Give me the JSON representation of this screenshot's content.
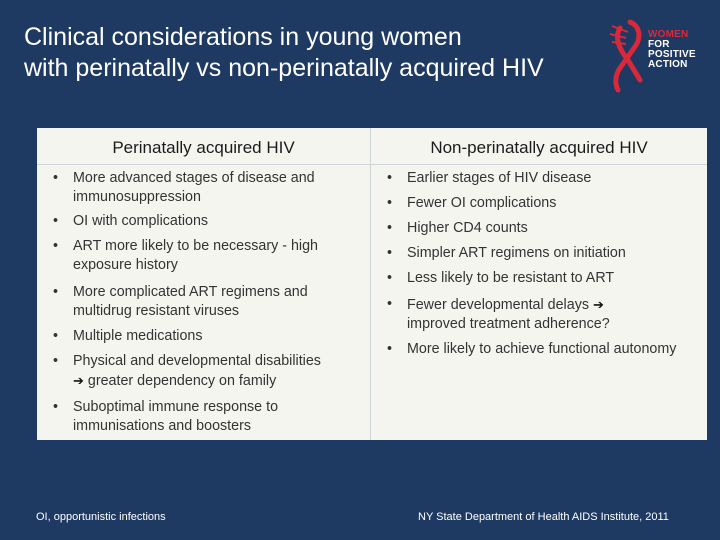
{
  "slide": {
    "title_line1": "Clinical considerations in young women",
    "title_line2": "with perinatally vs non-perinatally acquired HIV",
    "logo": {
      "line1": "WOMEN",
      "line2": "FOR",
      "line3": "POSITIVE",
      "line4": "ACTION",
      "accent_color": "#d9283a"
    },
    "left_column": {
      "heading": "Perinatally acquired HIV",
      "items": [
        "More advanced stages of disease and immunosuppression",
        "OI with complications",
        "ART more likely to be necessary - high exposure history",
        "More complicated ART regimens and multidrug resistant viruses",
        "Multiple medications",
        "Physical and developmental disabilities",
        "greater dependency on family",
        "Suboptimal immune response to immunisations and boosters"
      ]
    },
    "right_column": {
      "heading": "Non-perinatally acquired HIV",
      "items": [
        "Earlier stages of HIV disease",
        "Fewer OI complications",
        "Higher CD4 counts",
        "Simpler ART regimens on initiation",
        "Less likely to be resistant to ART",
        "Fewer developmental delays",
        "improved treatment adherence?",
        "More likely to achieve functional autonomy"
      ]
    },
    "footnote": "OI, opportunistic infections",
    "source": "NY State Department of Health AIDS Institute, 2011",
    "colors": {
      "background": "#1e3a63",
      "panel": "#f5f5f0"
    },
    "icons": {
      "arrow": "arrow-right-icon",
      "logo": "red-ribbon-icon"
    }
  }
}
